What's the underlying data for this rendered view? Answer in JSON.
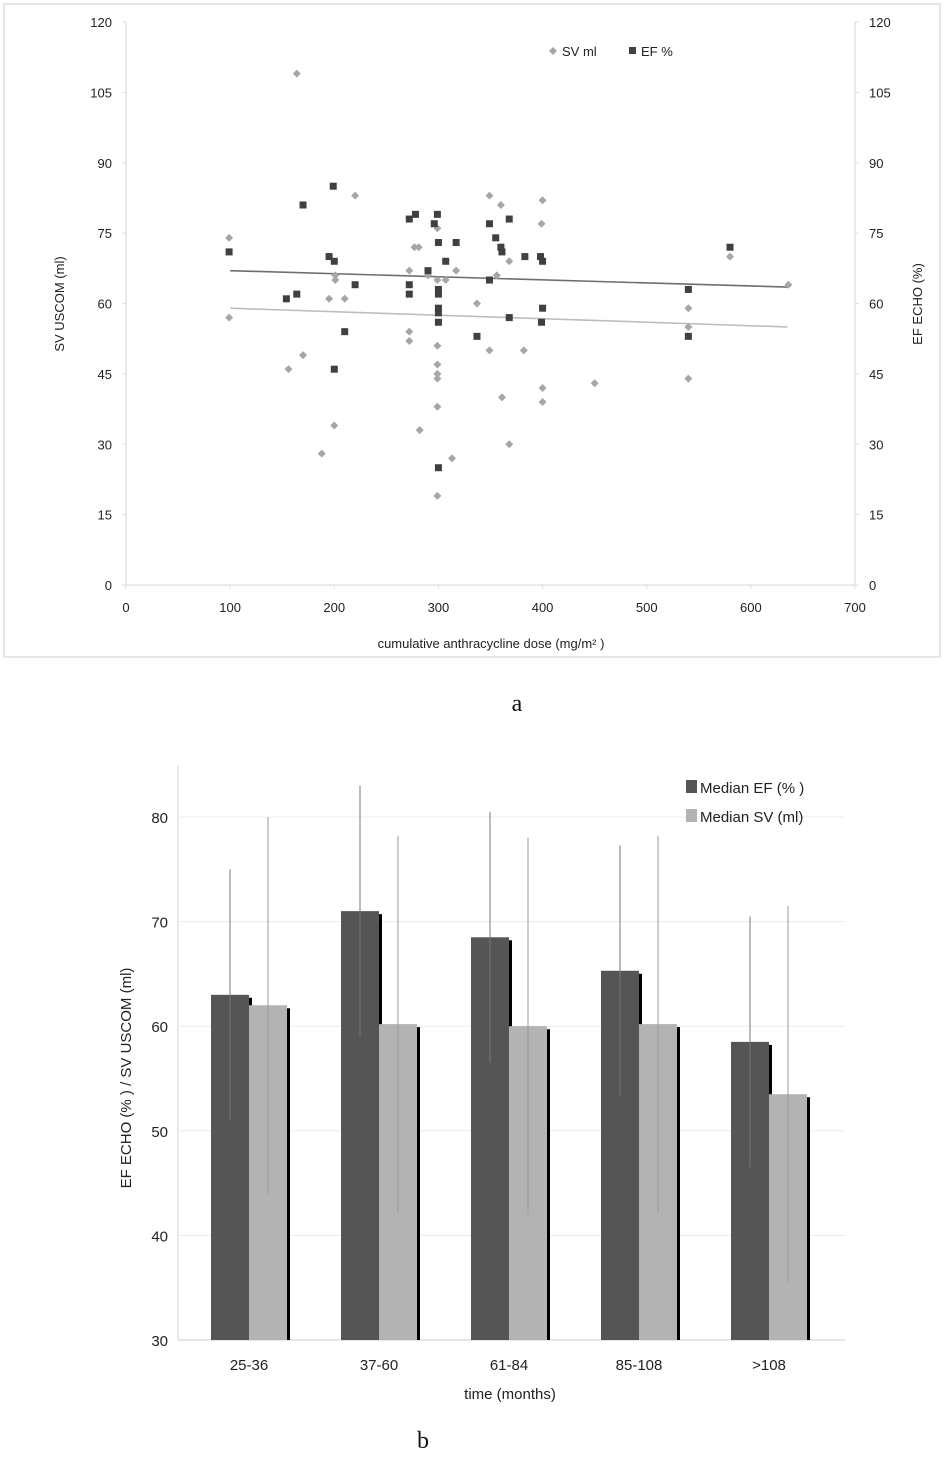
{
  "chart_data": [
    {
      "type": "scatter",
      "panel_label": "a",
      "xlabel": "cumulative anthracycline dose (mg/m² )",
      "ylabel_left": "SV USCOM (ml)",
      "ylabel_right": "EF ECHO (%)",
      "xlim": [
        0,
        700
      ],
      "ylim": [
        0,
        120
      ],
      "xticks": [
        "0",
        "100",
        "200",
        "300",
        "400",
        "500",
        "600",
        "700"
      ],
      "yticks": [
        "0",
        "15",
        "30",
        "45",
        "60",
        "75",
        "90",
        "105",
        "120"
      ],
      "legend_position": "top-center",
      "colors": {
        "sv": "#a6a6a6",
        "ef": "#404040",
        "sv_trend": "#bdbdbd",
        "ef_trend": "#6e6e6e"
      },
      "series": [
        {
          "name": "SV ml",
          "marker": "diamond",
          "points": [
            [
              99,
              74
            ],
            [
              99,
              57
            ],
            [
              164,
              109
            ],
            [
              156,
              46
            ],
            [
              170,
              49
            ],
            [
              188,
              28
            ],
            [
              200,
              34
            ],
            [
              195,
              61
            ],
            [
              201,
              65
            ],
            [
              201,
              66
            ],
            [
              210,
              61
            ],
            [
              220,
              83
            ],
            [
              272,
              67
            ],
            [
              272,
              54
            ],
            [
              272,
              52
            ],
            [
              277,
              72
            ],
            [
              281,
              72
            ],
            [
              282,
              33
            ],
            [
              290,
              66
            ],
            [
              299,
              76
            ],
            [
              299,
              65
            ],
            [
              299,
              51
            ],
            [
              299,
              47
            ],
            [
              299,
              45
            ],
            [
              299,
              44
            ],
            [
              299,
              38
            ],
            [
              299,
              19
            ],
            [
              307,
              65
            ],
            [
              313,
              27
            ],
            [
              317,
              67
            ],
            [
              337,
              60
            ],
            [
              349,
              83
            ],
            [
              349,
              50
            ],
            [
              360,
              81
            ],
            [
              356,
              66
            ],
            [
              361,
              40
            ],
            [
              368,
              30
            ],
            [
              368,
              69
            ],
            [
              382,
              50
            ],
            [
              400,
              82
            ],
            [
              399,
              77
            ],
            [
              400,
              42
            ],
            [
              400,
              39
            ],
            [
              450,
              43
            ],
            [
              540,
              59
            ],
            [
              540,
              55
            ],
            [
              540,
              44
            ],
            [
              580,
              70
            ],
            [
              636,
              64
            ]
          ]
        },
        {
          "name": "EF %",
          "marker": "square",
          "points": [
            [
              99,
              71
            ],
            [
              154,
              61
            ],
            [
              164,
              62
            ],
            [
              170,
              81
            ],
            [
              199,
              85
            ],
            [
              195,
              70
            ],
            [
              200,
              69
            ],
            [
              200,
              46
            ],
            [
              210,
              54
            ],
            [
              220,
              64
            ],
            [
              272,
              78
            ],
            [
              278,
              79
            ],
            [
              272,
              64
            ],
            [
              272,
              62
            ],
            [
              290,
              67
            ],
            [
              296,
              77
            ],
            [
              299,
              79
            ],
            [
              300,
              73
            ],
            [
              300,
              63
            ],
            [
              300,
              62
            ],
            [
              300,
              59
            ],
            [
              300,
              58
            ],
            [
              300,
              56
            ],
            [
              300,
              25
            ],
            [
              307,
              69
            ],
            [
              317,
              73
            ],
            [
              337,
              53
            ],
            [
              349,
              77
            ],
            [
              349,
              65
            ],
            [
              355,
              74
            ],
            [
              360,
              72
            ],
            [
              361,
              71
            ],
            [
              368,
              78
            ],
            [
              368,
              57
            ],
            [
              383,
              70
            ],
            [
              398,
              70
            ],
            [
              400,
              69
            ],
            [
              400,
              59
            ],
            [
              399,
              56
            ],
            [
              540,
              63
            ],
            [
              540,
              53
            ],
            [
              580,
              72
            ]
          ]
        }
      ],
      "trendlines": [
        {
          "series": "EF %",
          "from": [
            100,
            67
          ],
          "to": [
            635,
            63.5
          ]
        },
        {
          "series": "SV ml",
          "from": [
            100,
            59
          ],
          "to": [
            635,
            55
          ]
        }
      ]
    },
    {
      "type": "bar",
      "panel_label": "b",
      "xlabel": "time (months)",
      "ylabel": "EF ECHO (% ) / SV USCOM (ml)",
      "ylim": [
        30,
        85
      ],
      "yticks": [
        "30",
        "40",
        "50",
        "60",
        "70",
        "80"
      ],
      "categories": [
        "25-36",
        "37-60",
        "61-84",
        "85-108",
        ">108"
      ],
      "legend_position": "top-right",
      "series": [
        {
          "name": "Median EF (% )",
          "color": "#555555",
          "values": [
            63,
            71,
            68.5,
            65.3,
            58.5
          ],
          "error_low": [
            51,
            59,
            56.5,
            53.3,
            46.5
          ],
          "error_high": [
            75,
            83,
            80.5,
            77.3,
            70.5
          ]
        },
        {
          "name": "Median SV (ml)",
          "color": "#b3b3b3",
          "values": [
            62,
            60.2,
            60,
            60.2,
            53.5
          ],
          "error_low": [
            44,
            42.2,
            42,
            42.2,
            35.5
          ],
          "error_high": [
            80,
            78.2,
            78,
            78.2,
            71.5
          ]
        }
      ]
    }
  ]
}
